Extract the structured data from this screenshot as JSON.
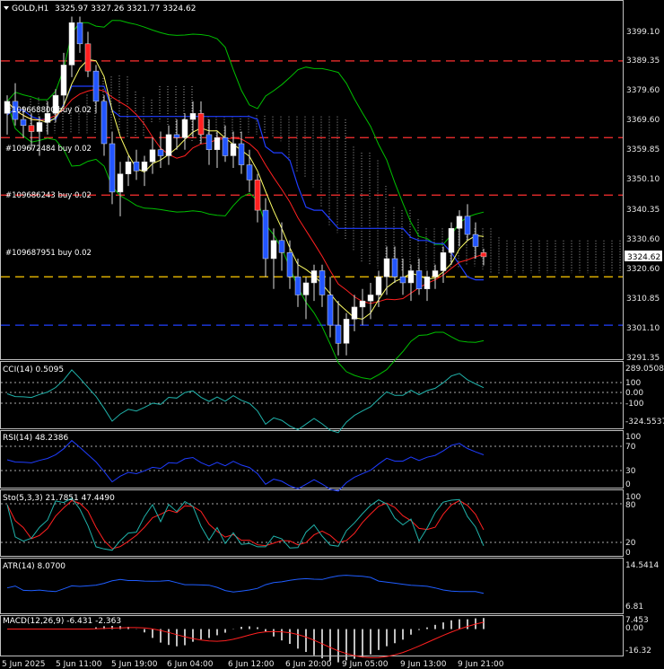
{
  "header": {
    "symbol_text": "GOLD,H1",
    "ohlc_text": "3325.97 3327.26 3321.77 3324.62",
    "dropdown_icon": "triangle-down-icon"
  },
  "colors": {
    "background": "#000000",
    "bull_body": "#ffffff",
    "bear_body": "#2255ff",
    "sell_body": "#ff2020",
    "grid": "#c0c0c0",
    "ma_fast": "#ffff66",
    "ma_slow": "#ff2020",
    "kijun": "#1f3dff",
    "bollinger": "#00c000",
    "cloud": "#ffffff",
    "hline_red": "#ff3030",
    "hline_blue": "#2040ff",
    "hline_yellow": "#ffcc00",
    "cci": "#20b2aa",
    "rsi": "#1f3dff",
    "stoch_main": "#20b2aa",
    "stoch_signal": "#ff2020",
    "atr": "#1f5dff",
    "macd_hist": "#c0c0c0",
    "macd_signal": "#ff2020"
  },
  "main_axis": {
    "ticks": [
      "3399.10",
      "3389.35",
      "3379.60",
      "3369.60",
      "3359.85",
      "3350.10",
      "3340.35",
      "3330.60",
      "3320.60",
      "3310.85",
      "3301.10",
      "3291.35"
    ],
    "current_price": "3324.62"
  },
  "orders": [
    {
      "label": "#109668800 buy 0.02"
    },
    {
      "label": "#109672484 buy 0.02"
    },
    {
      "label": "#109686243 buy 0.02"
    },
    {
      "label": "#109687951 buy 0.02"
    }
  ],
  "time_axis": [
    "5 Jun 2025",
    "5 Jun 11:00",
    "5 Jun 19:00",
    "6 Jun 04:00",
    "6 Jun 12:00",
    "6 Jun 20:00",
    "9 Jun 05:00",
    "9 Jun 13:00",
    "9 Jun 21:00"
  ],
  "indicators": {
    "cci": {
      "title": "CCI(14) 0.5095",
      "ticks": [
        "289.05084",
        "100",
        "0.00",
        "-100",
        "-324.5537"
      ]
    },
    "rsi": {
      "title": "RSI(14) 48.2386",
      "ticks": [
        "100",
        "70",
        "30",
        "0"
      ]
    },
    "stoch": {
      "title": "Sto(5,3,3) 21.7851 47.4490",
      "ticks": [
        "100",
        "80",
        "20",
        "0"
      ]
    },
    "atr": {
      "title": "ATR(14) 8.0700",
      "ticks": [
        "14.5414",
        "6.81"
      ]
    },
    "macd": {
      "title": "MACD(12,26,9) -6.431 -2.363",
      "ticks": [
        "7.453",
        "0.00",
        "-16.32"
      ]
    }
  },
  "chart_data": {
    "type": "candlestick",
    "symbol": "GOLD",
    "timeframe": "H1",
    "ylim": [
      3291.35,
      3399.1
    ],
    "hlines": [
      {
        "price": 3389.35,
        "color": "#ff3030"
      },
      {
        "price": 3364.0,
        "color": "#ff3030"
      },
      {
        "price": 3345.0,
        "color": "#ff3030"
      },
      {
        "price": 3318.0,
        "color": "#ffcc00"
      },
      {
        "price": 3302.0,
        "color": "#2040ff"
      }
    ],
    "candles": [
      [
        3372,
        3378,
        3365,
        3376
      ],
      [
        3376,
        3382,
        3368,
        3370
      ],
      [
        3370,
        3374,
        3364,
        3368
      ],
      [
        3368,
        3372,
        3360,
        3366
      ],
      [
        3366,
        3371,
        3358,
        3369
      ],
      [
        3369,
        3376,
        3365,
        3372
      ],
      [
        3372,
        3380,
        3369,
        3378
      ],
      [
        3378,
        3392,
        3374,
        3388
      ],
      [
        3388,
        3404,
        3384,
        3402
      ],
      [
        3402,
        3404,
        3392,
        3395
      ],
      [
        3395,
        3399,
        3384,
        3386
      ],
      [
        3386,
        3388,
        3372,
        3376
      ],
      [
        3376,
        3378,
        3358,
        3362
      ],
      [
        3362,
        3366,
        3342,
        3346
      ],
      [
        3346,
        3356,
        3338,
        3352
      ],
      [
        3352,
        3358,
        3348,
        3356
      ],
      [
        3356,
        3360,
        3350,
        3353
      ],
      [
        3353,
        3358,
        3348,
        3356
      ],
      [
        3356,
        3364,
        3352,
        3360
      ],
      [
        3360,
        3366,
        3354,
        3358
      ],
      [
        3358,
        3368,
        3355,
        3365
      ],
      [
        3365,
        3370,
        3360,
        3364
      ],
      [
        3364,
        3372,
        3360,
        3370
      ],
      [
        3370,
        3376,
        3364,
        3372
      ],
      [
        3372,
        3376,
        3362,
        3365
      ],
      [
        3365,
        3370,
        3355,
        3360
      ],
      [
        3360,
        3366,
        3354,
        3364
      ],
      [
        3364,
        3368,
        3356,
        3358
      ],
      [
        3358,
        3366,
        3354,
        3362
      ],
      [
        3362,
        3366,
        3352,
        3355
      ],
      [
        3355,
        3360,
        3346,
        3350
      ],
      [
        3350,
        3352,
        3336,
        3340
      ],
      [
        3340,
        3344,
        3318,
        3324
      ],
      [
        3324,
        3334,
        3314,
        3330
      ],
      [
        3330,
        3336,
        3320,
        3326
      ],
      [
        3326,
        3330,
        3314,
        3318
      ],
      [
        3318,
        3324,
        3308,
        3312
      ],
      [
        3312,
        3318,
        3304,
        3316
      ],
      [
        3316,
        3322,
        3310,
        3320
      ],
      [
        3320,
        3322,
        3308,
        3312
      ],
      [
        3312,
        3318,
        3298,
        3302
      ],
      [
        3302,
        3310,
        3292,
        3296
      ],
      [
        3296,
        3306,
        3292,
        3304
      ],
      [
        3304,
        3312,
        3300,
        3308
      ],
      [
        3308,
        3314,
        3302,
        3310
      ],
      [
        3310,
        3316,
        3304,
        3312
      ],
      [
        3312,
        3320,
        3308,
        3318
      ],
      [
        3318,
        3328,
        3312,
        3324
      ],
      [
        3324,
        3328,
        3316,
        3318
      ],
      [
        3318,
        3324,
        3312,
        3316
      ],
      [
        3316,
        3322,
        3310,
        3320
      ],
      [
        3320,
        3324,
        3312,
        3314
      ],
      [
        3314,
        3320,
        3310,
        3318
      ],
      [
        3318,
        3322,
        3314,
        3320
      ],
      [
        3320,
        3328,
        3316,
        3326
      ],
      [
        3326,
        3336,
        3322,
        3334
      ],
      [
        3334,
        3340,
        3328,
        3338
      ],
      [
        3338,
        3342,
        3330,
        3332
      ],
      [
        3332,
        3336,
        3324,
        3328
      ],
      [
        3326,
        3327.26,
        3321.77,
        3324.62
      ]
    ]
  }
}
